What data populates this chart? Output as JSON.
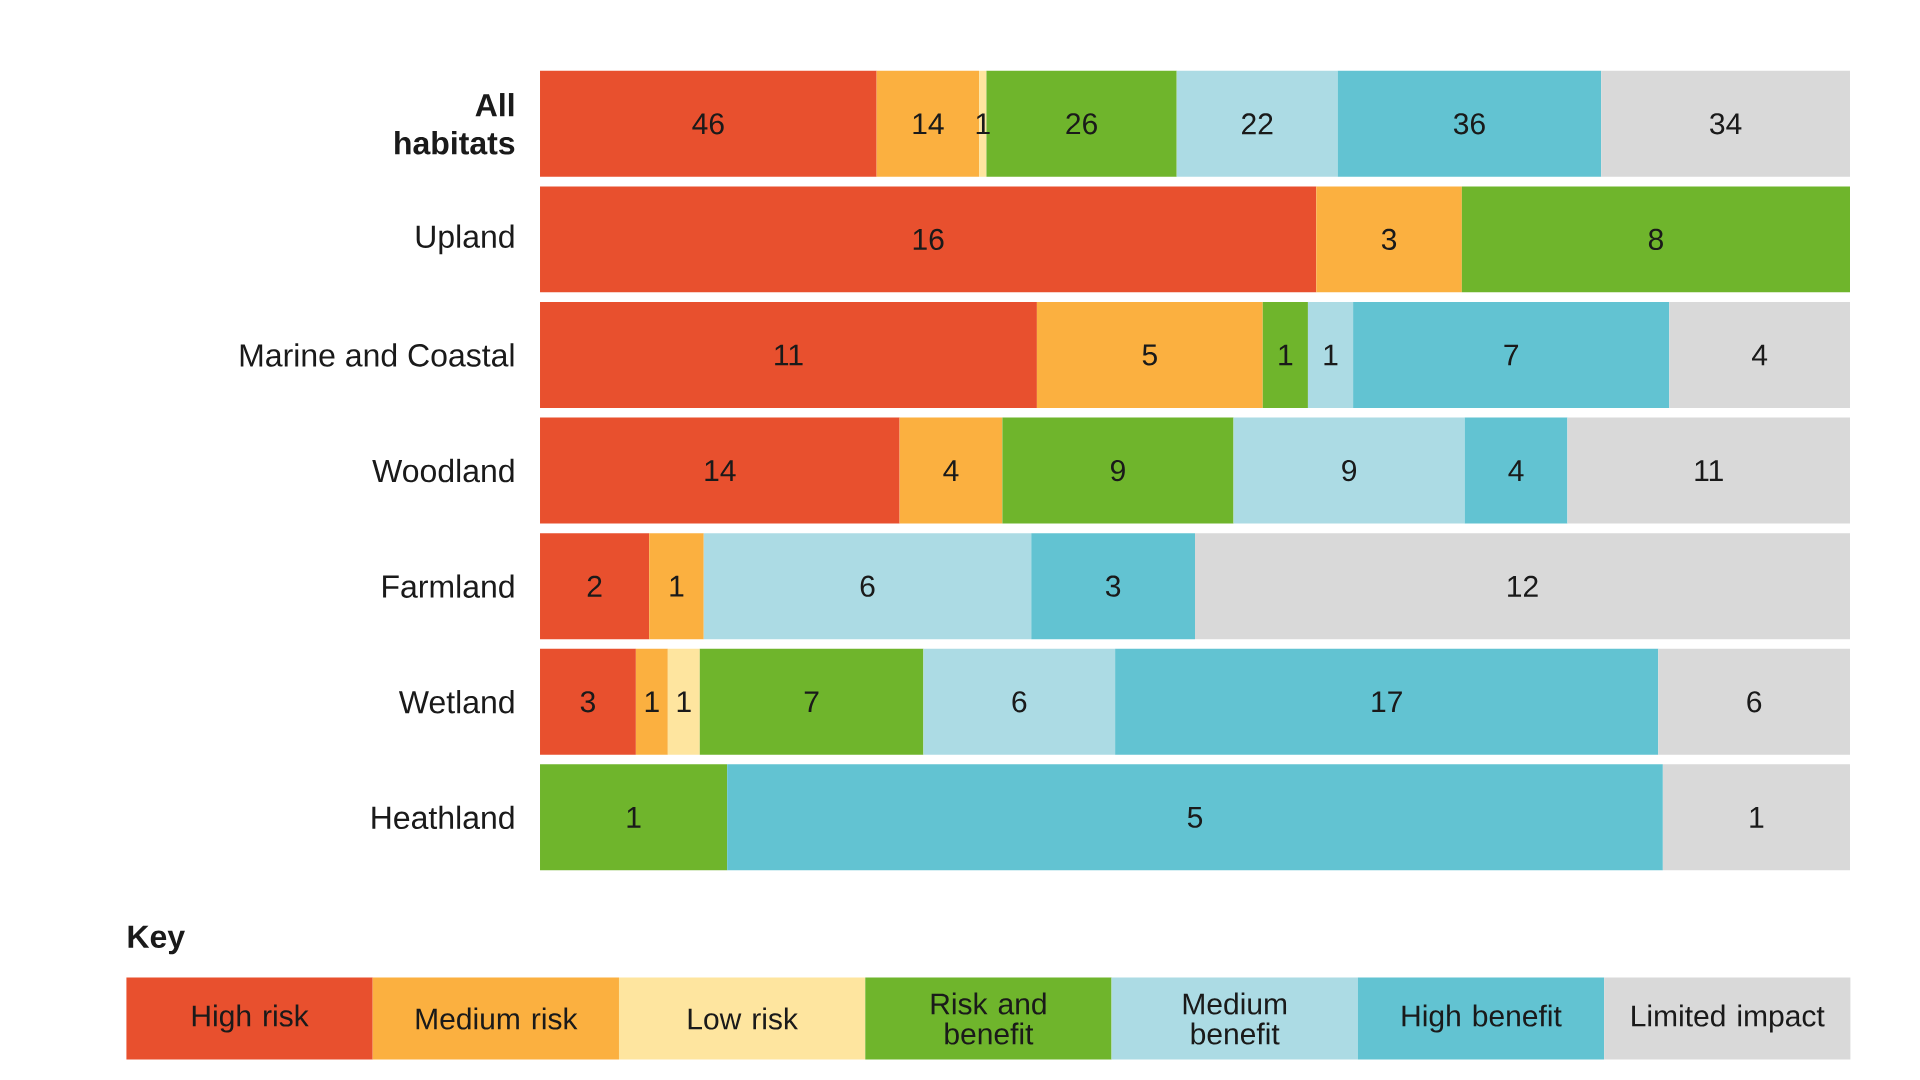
{
  "chart_data": [
    {
      "type": "bar",
      "orientation": "horizontal",
      "stacked": true,
      "data_labels": true,
      "categories": [
        "All habitats"
      ],
      "legend": "bottom",
      "legend_title": "Key",
      "series": [
        {
          "name": "High risk",
          "color": "#e8502e",
          "values": [
            46
          ]
        },
        {
          "name": "Medium risk",
          "color": "#fbb040",
          "values": [
            14
          ]
        },
        {
          "name": "Low risk",
          "color": "#fee59f",
          "values": [
            1
          ]
        },
        {
          "name": "Risk and benefit",
          "color": "#6fb52c",
          "values": [
            26
          ]
        },
        {
          "name": "Medium benefit",
          "color": "#acdbe4",
          "values": [
            22
          ]
        },
        {
          "name": "High benefit",
          "color": "#62c3d2",
          "values": [
            36
          ]
        },
        {
          "name": "Limited impact",
          "color": "#d9d9d9",
          "values": [
            34
          ]
        }
      ]
    },
    {
      "type": "bar",
      "orientation": "horizontal",
      "stacked": true,
      "data_labels": true,
      "categories": [
        "Upland"
      ],
      "series": [
        {
          "color": "#e8502e",
          "values": [
            16
          ]
        },
        {
          "color": "#fbb040",
          "values": [
            3
          ]
        },
        {
          "color": "#6fb52c",
          "values": [
            8
          ]
        }
      ]
    },
    {
      "type": "bar",
      "orientation": "horizontal",
      "stacked": true,
      "data_labels": true,
      "categories": [
        "Marine and Coastal"
      ],
      "series": [
        {
          "color": "#e8502e",
          "values": [
            11
          ]
        },
        {
          "color": "#fbb040",
          "values": [
            5
          ]
        },
        {
          "color": "#6fb52c",
          "values": [
            1
          ]
        },
        {
          "color": "#acdbe4",
          "values": [
            1
          ]
        },
        {
          "color": "#62c3d2",
          "values": [
            7
          ]
        },
        {
          "color": "#d9d9d9",
          "values": [
            4
          ]
        }
      ]
    },
    {
      "type": "bar",
      "orientation": "horizontal",
      "stacked": true,
      "data_labels": true,
      "categories": [
        "Woodland"
      ],
      "series": [
        {
          "color": "#e8502e",
          "values": [
            14
          ]
        },
        {
          "color": "#fbb040",
          "values": [
            4
          ]
        },
        {
          "color": "#6fb52c",
          "values": [
            9
          ]
        },
        {
          "color": "#acdbe4",
          "values": [
            9
          ]
        },
        {
          "color": "#62c3d2",
          "values": [
            4
          ]
        },
        {
          "color": "#d9d9d9",
          "values": [
            11
          ]
        }
      ]
    },
    {
      "type": "bar",
      "orientation": "horizontal",
      "stacked": true,
      "data_labels": true,
      "categories": [
        "Farmland"
      ],
      "series": [
        {
          "color": "#e8502e",
          "values": [
            2
          ]
        },
        {
          "color": "#fbb040",
          "values": [
            1
          ]
        },
        {
          "color": "#acdbe4",
          "values": [
            6
          ]
        },
        {
          "color": "#62c3d2",
          "values": [
            3
          ]
        },
        {
          "color": "#d9d9d9",
          "values": [
            12
          ]
        }
      ]
    },
    {
      "type": "bar",
      "orientation": "horizontal",
      "stacked": true,
      "data_labels": true,
      "categories": [
        "Wetland"
      ],
      "series": [
        {
          "color": "#e8502e",
          "values": [
            3
          ]
        },
        {
          "color": "#fbb040",
          "values": [
            1
          ]
        },
        {
          "color": "#fee59f",
          "values": [
            1
          ]
        },
        {
          "color": "#6fb52c",
          "values": [
            7
          ]
        },
        {
          "color": "#acdbe4",
          "values": [
            6
          ]
        },
        {
          "color": "#62c3d2",
          "values": [
            17
          ]
        },
        {
          "color": "#d9d9d9",
          "values": [
            6
          ]
        }
      ]
    },
    {
      "type": "bar",
      "orientation": "horizontal",
      "stacked": true,
      "data_labels": true,
      "categories": [
        "Heathland"
      ],
      "series": [
        {
          "color": "#6fb52c",
          "values": [
            1
          ]
        },
        {
          "color": "#62c3d2",
          "values": [
            5
          ]
        },
        {
          "color": "#d9d9d9",
          "values": [
            1
          ]
        }
      ]
    }
  ]
}
